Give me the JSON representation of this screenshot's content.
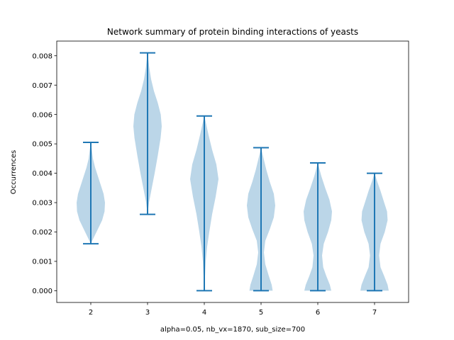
{
  "chart_data": {
    "type": "violin",
    "title": "Network summary of protein binding interactions of yeasts",
    "xlabel": "alpha=0.05, nb_vx=1870, sub_size=700",
    "ylabel": "Occurrences",
    "ylim": [
      -0.0004,
      0.0085
    ],
    "yticks": [
      "0.000",
      "0.001",
      "0.002",
      "0.003",
      "0.004",
      "0.005",
      "0.006",
      "0.007",
      "0.008"
    ],
    "categories": [
      "2",
      "3",
      "4",
      "5",
      "6",
      "7"
    ],
    "grid": false,
    "series": [
      {
        "x": 2,
        "min": 0.0016,
        "max": 0.00505,
        "density": [
          [
            0.0016,
            0.0
          ],
          [
            0.0018,
            0.2
          ],
          [
            0.0021,
            0.5
          ],
          [
            0.0024,
            0.8
          ],
          [
            0.0027,
            0.97
          ],
          [
            0.003,
            1.0
          ],
          [
            0.0033,
            0.9
          ],
          [
            0.0036,
            0.7
          ],
          [
            0.0039,
            0.5
          ],
          [
            0.0042,
            0.3
          ],
          [
            0.0045,
            0.15
          ],
          [
            0.0048,
            0.07
          ],
          [
            0.00505,
            0.0
          ]
        ]
      },
      {
        "x": 3,
        "min": 0.0026,
        "max": 0.0081,
        "density": [
          [
            0.0026,
            0.0
          ],
          [
            0.003,
            0.1
          ],
          [
            0.0035,
            0.3
          ],
          [
            0.004,
            0.5
          ],
          [
            0.0046,
            0.72
          ],
          [
            0.0052,
            0.92
          ],
          [
            0.0056,
            1.0
          ],
          [
            0.006,
            0.93
          ],
          [
            0.0064,
            0.72
          ],
          [
            0.0068,
            0.45
          ],
          [
            0.0072,
            0.25
          ],
          [
            0.0076,
            0.12
          ],
          [
            0.0081,
            0.0
          ]
        ]
      },
      {
        "x": 4,
        "min": 0.0,
        "max": 0.00595,
        "density": [
          [
            0.0,
            0.0
          ],
          [
            0.0005,
            0.05
          ],
          [
            0.001,
            0.1
          ],
          [
            0.0015,
            0.2
          ],
          [
            0.002,
            0.35
          ],
          [
            0.0026,
            0.55
          ],
          [
            0.0032,
            0.8
          ],
          [
            0.0038,
            1.0
          ],
          [
            0.0043,
            0.85
          ],
          [
            0.0048,
            0.55
          ],
          [
            0.0053,
            0.3
          ],
          [
            0.0057,
            0.12
          ],
          [
            0.00595,
            0.0
          ]
        ]
      },
      {
        "x": 5,
        "min": 0.0,
        "max": 0.00487,
        "density": [
          [
            0.0,
            0.82
          ],
          [
            0.0002,
            0.75
          ],
          [
            0.0005,
            0.55
          ],
          [
            0.0009,
            0.3
          ],
          [
            0.0013,
            0.2
          ],
          [
            0.0017,
            0.3
          ],
          [
            0.0021,
            0.62
          ],
          [
            0.0025,
            0.9
          ],
          [
            0.0029,
            1.0
          ],
          [
            0.0033,
            0.9
          ],
          [
            0.0037,
            0.62
          ],
          [
            0.0041,
            0.38
          ],
          [
            0.0045,
            0.18
          ],
          [
            0.00487,
            0.0
          ]
        ]
      },
      {
        "x": 6,
        "min": 0.0,
        "max": 0.00435,
        "density": [
          [
            0.0,
            0.95
          ],
          [
            0.0002,
            0.85
          ],
          [
            0.0005,
            0.6
          ],
          [
            0.0008,
            0.38
          ],
          [
            0.0012,
            0.3
          ],
          [
            0.0016,
            0.42
          ],
          [
            0.002,
            0.72
          ],
          [
            0.0024,
            0.95
          ],
          [
            0.0027,
            1.0
          ],
          [
            0.0031,
            0.82
          ],
          [
            0.0035,
            0.52
          ],
          [
            0.0039,
            0.25
          ],
          [
            0.00435,
            0.0
          ]
        ]
      },
      {
        "x": 7,
        "min": 0.0,
        "max": 0.004,
        "density": [
          [
            0.0,
            1.0
          ],
          [
            0.0002,
            0.92
          ],
          [
            0.0005,
            0.68
          ],
          [
            0.0008,
            0.42
          ],
          [
            0.0012,
            0.32
          ],
          [
            0.0016,
            0.42
          ],
          [
            0.002,
            0.72
          ],
          [
            0.0024,
            0.92
          ],
          [
            0.0027,
            0.88
          ],
          [
            0.003,
            0.68
          ],
          [
            0.0034,
            0.42
          ],
          [
            0.0037,
            0.2
          ],
          [
            0.004,
            0.0
          ]
        ]
      }
    ],
    "colors": {
      "body": "#1f77b4",
      "line": "#1f77b4"
    }
  }
}
